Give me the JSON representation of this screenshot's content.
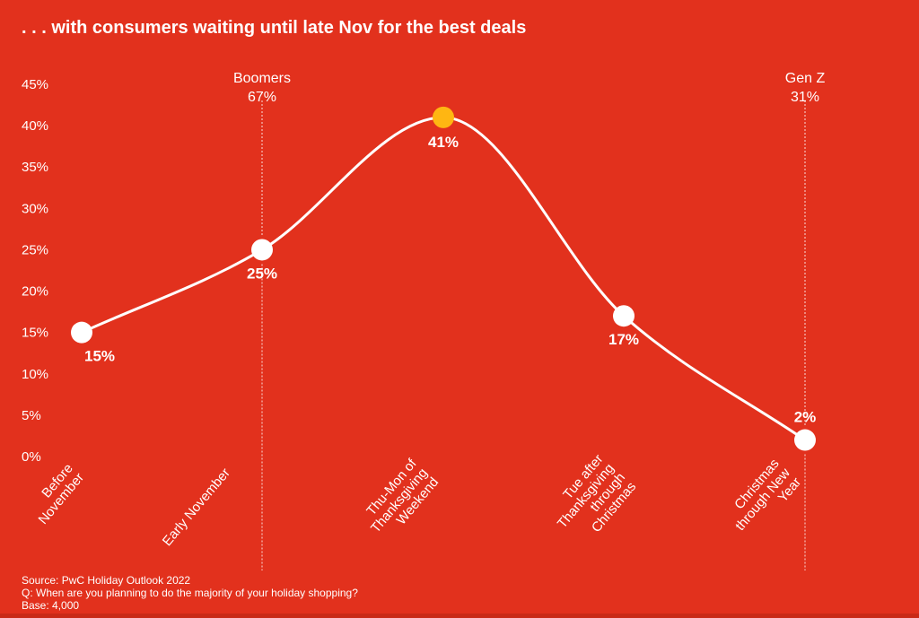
{
  "header": {
    "title": ". . . with consumers waiting until late Nov for the best deals"
  },
  "chart_data": {
    "type": "line",
    "title": ". . . with consumers waiting until late Nov for the best deals",
    "categories": [
      [
        "Before",
        "November"
      ],
      [
        "Early November"
      ],
      [
        "Thu-Mon of",
        "Thanksgiving",
        "Weekend"
      ],
      [
        "Tue after",
        "Thanksgiving",
        "through",
        "Christmas"
      ],
      [
        "Christmas",
        "through New",
        "Year"
      ]
    ],
    "series": [
      {
        "values": [
          15,
          25,
          41,
          17,
          2
        ],
        "labels": [
          "15%",
          "25%",
          "41%",
          "17%",
          "2%"
        ]
      }
    ],
    "highlight_index": 2,
    "ylim": [
      0,
      45
    ],
    "yticks": [
      0,
      5,
      10,
      15,
      20,
      25,
      30,
      35,
      40,
      45
    ],
    "ytick_labels": [
      "0%",
      "5%",
      "10%",
      "15%",
      "20%",
      "25%",
      "30%",
      "35%",
      "40%",
      "45%"
    ],
    "xlabel": "",
    "ylabel": "",
    "grid": false,
    "smooth": true,
    "annotations": [
      {
        "category_index": 1,
        "lines": [
          "Boomers",
          "67%"
        ]
      },
      {
        "category_index": 4,
        "lines": [
          "Gen Z",
          "31%"
        ]
      }
    ],
    "colors": {
      "background": "#e2311d",
      "line": "#ffffff",
      "marker": "#ffffff",
      "highlight_marker": "#ffb612",
      "text": "#ffffff"
    }
  },
  "footer": {
    "source": "Source: PwC Holiday Outlook 2022",
    "question": "Q: When are you planning to do the majority of your holiday shopping?",
    "base": "Base: 4,000"
  }
}
